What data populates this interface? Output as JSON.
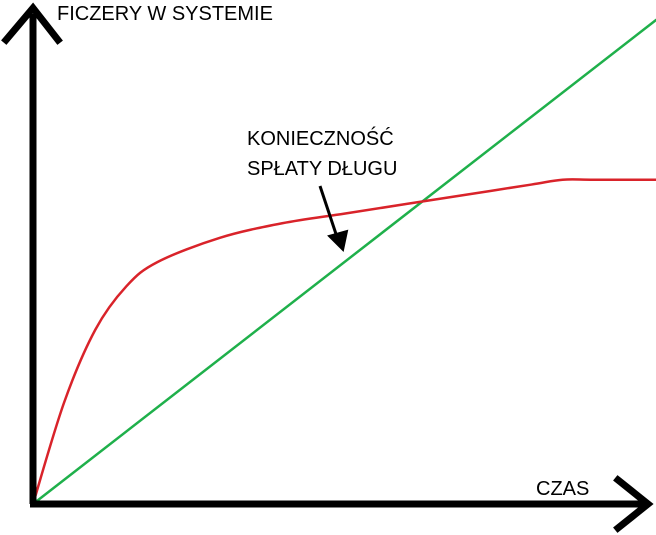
{
  "chart_data": {
    "type": "line",
    "title": "",
    "ylabel": "FICZERY W SYSTEMIE",
    "xlabel": "CZAS",
    "xlim": [
      0,
      100
    ],
    "ylim": [
      0,
      100
    ],
    "grid": false,
    "legend": "none",
    "series": [
      {
        "color": "#1fb04b",
        "x": [
          0,
          100
        ],
        "y": [
          0,
          100
        ]
      },
      {
        "color": "#d9232a",
        "x": [
          0,
          5,
          10,
          15,
          20,
          30,
          40,
          50,
          60,
          70,
          80,
          85,
          90,
          100
        ],
        "y": [
          0,
          21,
          36,
          45,
          50,
          55,
          58,
          60,
          62,
          64,
          66,
          67,
          67,
          67
        ]
      }
    ],
    "annotation": {
      "text_lines": [
        "KONIECZNOŚĆ",
        "SPŁATY DŁUGU"
      ],
      "points_to": {
        "x": 49,
        "y": 60
      }
    }
  },
  "colors": {
    "axis": "#000000",
    "text": "#000000"
  }
}
